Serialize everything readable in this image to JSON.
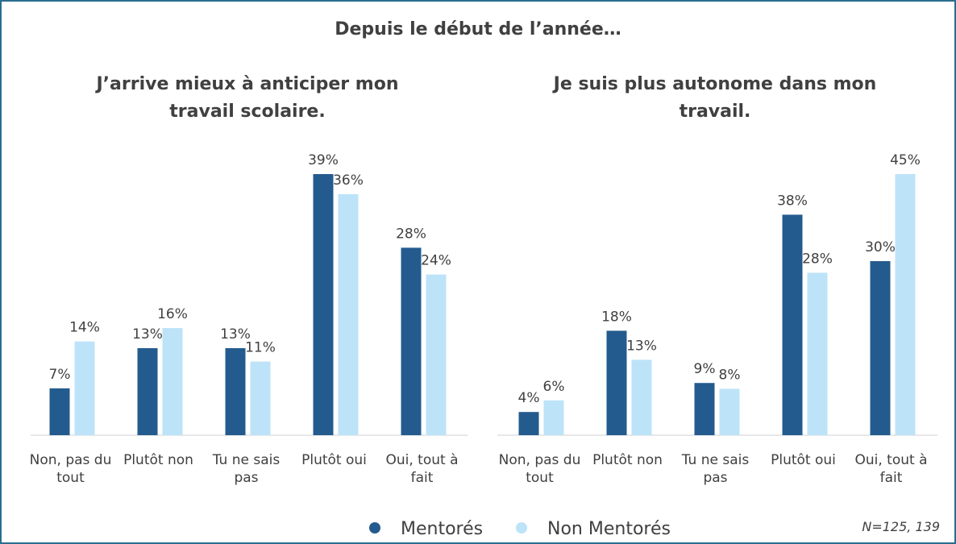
{
  "title": "Depuis le début de l’année…",
  "note": "N=125, 139",
  "chart_data": [
    {
      "type": "bar",
      "title": "J’arrive mieux à anticiper mon travail scolaire.",
      "categories": [
        "Non, pas du tout",
        "Plutôt non",
        "Tu ne sais pas",
        "Plutôt oui",
        "Oui, tout à fait"
      ],
      "series": [
        {
          "name": "Mentorés",
          "color": "#245b8e",
          "values": [
            7,
            13,
            13,
            39,
            28
          ],
          "value_labels": [
            "7%",
            "13%",
            "13%",
            "39%",
            "28%"
          ]
        },
        {
          "name": "Non Mentorés",
          "color": "#bde3f8",
          "values": [
            14,
            16,
            11,
            36,
            24
          ],
          "value_labels": [
            "14%",
            "16%",
            "11%",
            "36%",
            "24%"
          ]
        }
      ]
    },
    {
      "type": "bar",
      "title": "Je suis plus autonome dans mon travail.",
      "categories": [
        "Non, pas du tout",
        "Plutôt non",
        "Tu ne sais pas",
        "Plutôt oui",
        "Oui, tout à fait"
      ],
      "series": [
        {
          "name": "Mentorés",
          "color": "#245b8e",
          "values": [
            4,
            18,
            9,
            38,
            30
          ],
          "value_labels": [
            "4%",
            "18%",
            "9%",
            "38%",
            "30%"
          ]
        },
        {
          "name": "Non Mentorés",
          "color": "#bde3f8",
          "values": [
            6,
            13,
            8,
            28,
            45
          ],
          "value_labels": [
            "6%",
            "13%",
            "8%",
            "28%",
            "45%"
          ]
        }
      ]
    }
  ]
}
